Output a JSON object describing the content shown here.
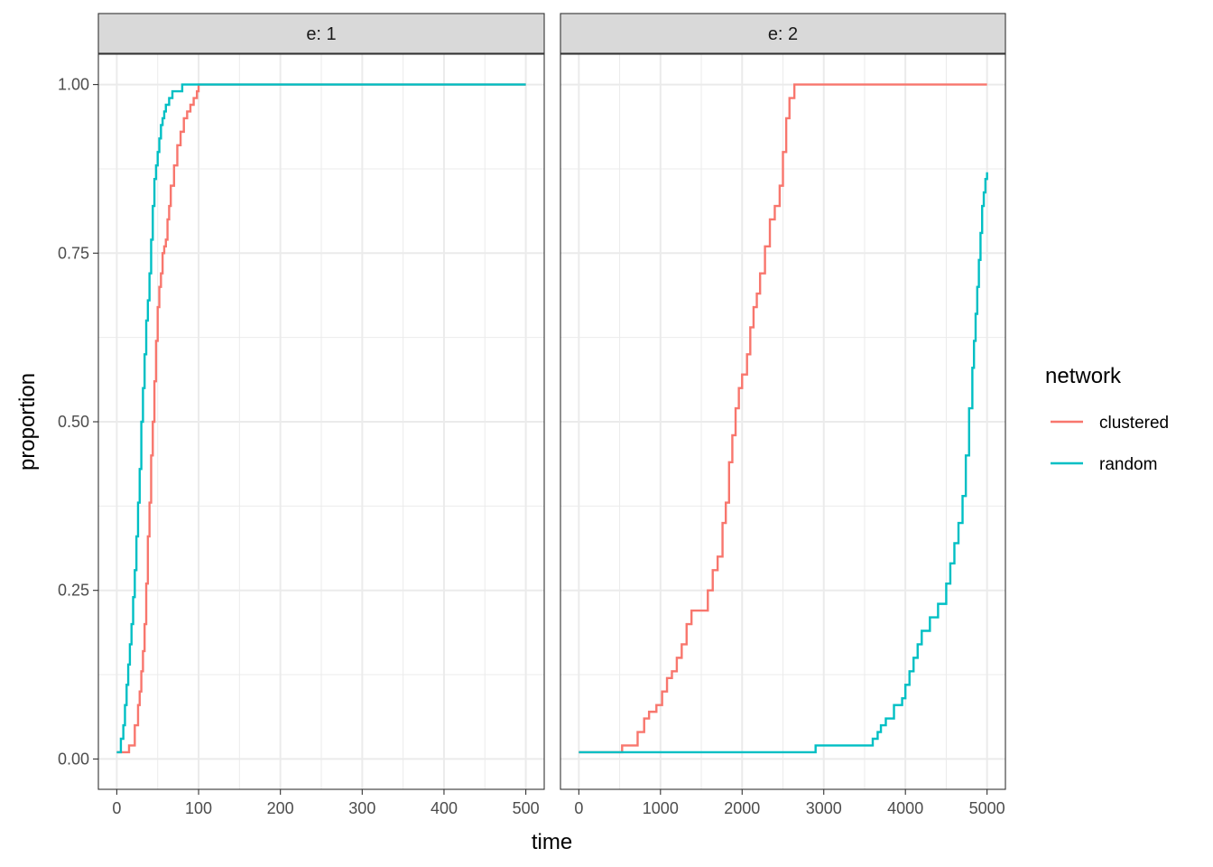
{
  "chart_data": {
    "type": "line",
    "xlabel": "time",
    "ylabel": "proportion",
    "ylim": [
      0,
      1
    ],
    "yticks": [
      0,
      0.25,
      0.5,
      0.75,
      1
    ],
    "ytick_labels": [
      "0.00",
      "0.25",
      "0.50",
      "0.75",
      "1.00"
    ],
    "grid": true,
    "legend": {
      "title": "network",
      "position": "right",
      "entries": [
        {
          "name": "clustered",
          "color": "#F8766D"
        },
        {
          "name": "random",
          "color": "#00BFC4"
        }
      ]
    },
    "facets": [
      {
        "label": "e: 1",
        "xlim": [
          0,
          500
        ],
        "xticks": [
          0,
          100,
          200,
          300,
          400,
          500
        ],
        "xtick_labels": [
          "0",
          "100",
          "200",
          "300",
          "400",
          "500"
        ],
        "series": [
          {
            "name": "clustered",
            "step": true,
            "x": [
              0,
              15,
              22,
              26,
              28,
              30,
              32,
              34,
              36,
              38,
              40,
              42,
              44,
              46,
              48,
              50,
              52,
              54,
              56,
              58,
              60,
              62,
              64,
              66,
              70,
              74,
              78,
              82,
              86,
              90,
              94,
              98,
              100,
              500
            ],
            "y": [
              0.01,
              0.02,
              0.05,
              0.08,
              0.1,
              0.13,
              0.16,
              0.2,
              0.26,
              0.33,
              0.38,
              0.45,
              0.5,
              0.56,
              0.62,
              0.67,
              0.7,
              0.72,
              0.75,
              0.76,
              0.77,
              0.8,
              0.82,
              0.85,
              0.88,
              0.91,
              0.93,
              0.95,
              0.96,
              0.97,
              0.98,
              0.99,
              1.0,
              1.0
            ]
          },
          {
            "name": "random",
            "step": true,
            "x": [
              0,
              5,
              8,
              10,
              12,
              14,
              16,
              18,
              20,
              22,
              24,
              26,
              28,
              30,
              32,
              34,
              36,
              38,
              40,
              42,
              44,
              46,
              48,
              50,
              52,
              54,
              56,
              58,
              60,
              64,
              68,
              72,
              76,
              80,
              500
            ],
            "y": [
              0.01,
              0.03,
              0.05,
              0.08,
              0.11,
              0.14,
              0.17,
              0.2,
              0.24,
              0.28,
              0.33,
              0.38,
              0.43,
              0.5,
              0.55,
              0.6,
              0.65,
              0.68,
              0.72,
              0.77,
              0.82,
              0.86,
              0.88,
              0.9,
              0.92,
              0.94,
              0.95,
              0.96,
              0.97,
              0.98,
              0.99,
              0.99,
              0.99,
              1.0,
              1.0
            ]
          }
        ]
      },
      {
        "label": "e: 2",
        "xlim": [
          0,
          5000
        ],
        "xticks": [
          0,
          1000,
          2000,
          3000,
          4000,
          5000
        ],
        "xtick_labels": [
          "0",
          "1000",
          "2000",
          "3000",
          "4000",
          "5000"
        ],
        "series": [
          {
            "name": "clustered",
            "step": true,
            "x": [
              0,
              530,
              720,
              800,
              860,
              950,
              1020,
              1080,
              1140,
              1200,
              1260,
              1320,
              1380,
              1460,
              1580,
              1640,
              1700,
              1760,
              1800,
              1840,
              1880,
              1920,
              1960,
              2000,
              2060,
              2100,
              2140,
              2180,
              2220,
              2280,
              2340,
              2400,
              2460,
              2500,
              2540,
              2580,
              2640,
              5000
            ],
            "y": [
              0.01,
              0.02,
              0.04,
              0.06,
              0.07,
              0.08,
              0.1,
              0.12,
              0.13,
              0.15,
              0.17,
              0.2,
              0.22,
              0.22,
              0.25,
              0.28,
              0.3,
              0.35,
              0.38,
              0.44,
              0.48,
              0.52,
              0.55,
              0.57,
              0.6,
              0.64,
              0.67,
              0.69,
              0.72,
              0.76,
              0.8,
              0.82,
              0.85,
              0.9,
              0.95,
              0.98,
              1.0,
              1.0
            ]
          },
          {
            "name": "random",
            "step": true,
            "x": [
              0,
              2900,
              3600,
              3660,
              3700,
              3760,
              3860,
              3960,
              4000,
              4050,
              4100,
              4150,
              4200,
              4250,
              4300,
              4400,
              4500,
              4550,
              4600,
              4650,
              4700,
              4740,
              4780,
              4820,
              4840,
              4860,
              4880,
              4900,
              4920,
              4940,
              4960,
              4980,
              5000
            ],
            "y": [
              0.01,
              0.02,
              0.03,
              0.04,
              0.05,
              0.06,
              0.08,
              0.09,
              0.11,
              0.13,
              0.15,
              0.17,
              0.19,
              0.19,
              0.21,
              0.23,
              0.26,
              0.29,
              0.32,
              0.35,
              0.39,
              0.45,
              0.52,
              0.58,
              0.62,
              0.66,
              0.7,
              0.74,
              0.78,
              0.82,
              0.84,
              0.86,
              0.87
            ]
          }
        ]
      }
    ]
  }
}
